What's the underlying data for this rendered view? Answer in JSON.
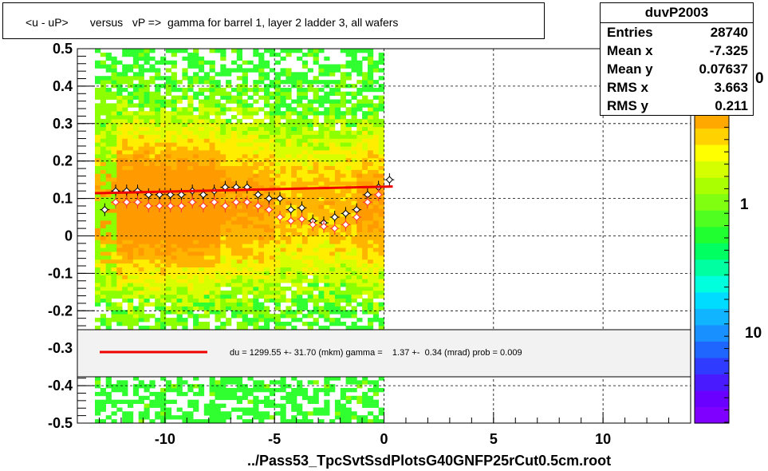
{
  "title": "<u - uP>       versus   vP =>  gamma for barrel 1, layer 2 ladder 3, all wafers",
  "stats": {
    "name": "duvP2003",
    "rows": [
      {
        "label": "Entries",
        "value": "28740"
      },
      {
        "label": "Mean x",
        "value": "-7.325"
      },
      {
        "label": "Mean y",
        "value": "0.07637"
      },
      {
        "label": "RMS x",
        "value": "3.663"
      },
      {
        "label": "RMS y",
        "value": "0.211"
      }
    ]
  },
  "x_title": "../Pass53_TpcSvtSsdPlotsG40GNFP25rCut0.5cm.root",
  "fit_legend": "du = 1299.55 +- 31.70 (mkm) gamma =    1.37 +-  0.34 (mrad) prob = 0.009",
  "palette_labels": [
    "1",
    "10"
  ],
  "palette_partial_label": "0",
  "colors": {
    "fit_line": "#ee0000",
    "palette": [
      "#7f00ff",
      "#6a00ff",
      "#4a1aff",
      "#2f3cff",
      "#1f66ff",
      "#1890ff",
      "#10b4ff",
      "#00dcff",
      "#00ffdc",
      "#00ffa0",
      "#00ff60",
      "#20ff30",
      "#50ff20",
      "#80ff10",
      "#aaff00",
      "#d4ff00",
      "#ffff00",
      "#ffd200",
      "#ffa800"
    ]
  },
  "chart_data": {
    "type": "heatmap",
    "xlim": [
      -14,
      14
    ],
    "ylim": [
      -0.5,
      0.5
    ],
    "x_ticks": [
      -10,
      -5,
      0,
      5,
      10
    ],
    "y_ticks": [
      -0.5,
      -0.4,
      -0.3,
      -0.2,
      -0.1,
      0,
      0.1,
      0.2,
      0.3,
      0.4,
      0.5
    ],
    "x_tick_labels": [
      "-10",
      "-5",
      "0",
      "5",
      "10"
    ],
    "y_tick_labels": [
      "-0.5",
      "-0.4",
      "-0.3",
      "-0.2",
      "-0.1",
      "0",
      "0.1",
      "0.2",
      "0.3",
      "0.4",
      "0.5"
    ],
    "grid": true,
    "z_scale": "log",
    "occupied_x_range": [
      -13.2,
      0
    ],
    "series": [
      {
        "kind": "profile_black",
        "x": [
          -12.75,
          -12.25,
          -11.75,
          -11.25,
          -10.75,
          -10.25,
          -9.75,
          -9.25,
          -8.75,
          -8.25,
          -7.75,
          -7.25,
          -6.75,
          -6.25,
          -5.75,
          -5.25,
          -4.75,
          -4.25,
          -3.75,
          -3.25,
          -2.75,
          -2.25,
          -1.75,
          -1.25,
          -0.75,
          -0.25,
          0.25
        ],
        "y": [
          0.07,
          0.12,
          0.12,
          0.12,
          0.11,
          0.11,
          0.11,
          0.11,
          0.12,
          0.11,
          0.12,
          0.13,
          0.13,
          0.13,
          0.11,
          0.1,
          0.1,
          0.07,
          0.075,
          0.04,
          0.035,
          0.05,
          0.06,
          0.07,
          0.11,
          0.13,
          0.15
        ]
      },
      {
        "kind": "profile_red",
        "x": [
          -12.25,
          -11.75,
          -11.25,
          -10.75,
          -10.25,
          -9.75,
          -9.25,
          -8.75,
          -8.25,
          -7.75,
          -7.25,
          -6.75,
          -6.25,
          -5.75,
          -5.25,
          -4.75,
          -4.25,
          -3.75,
          -3.25,
          -2.75,
          -2.25,
          -1.75,
          -1.25,
          -0.75,
          -0.25
        ],
        "y": [
          0.09,
          0.09,
          0.09,
          0.08,
          0.08,
          0.08,
          0.08,
          0.09,
          0.08,
          0.09,
          0.08,
          0.09,
          0.09,
          0.08,
          0.07,
          0.05,
          0.04,
          0.045,
          0.03,
          0.025,
          0.02,
          0.03,
          0.05,
          0.09,
          0.11
        ]
      },
      {
        "kind": "fit_line",
        "x": [
          -13.2,
          0.4
        ],
        "y": [
          0.114,
          0.132
        ]
      }
    ]
  }
}
